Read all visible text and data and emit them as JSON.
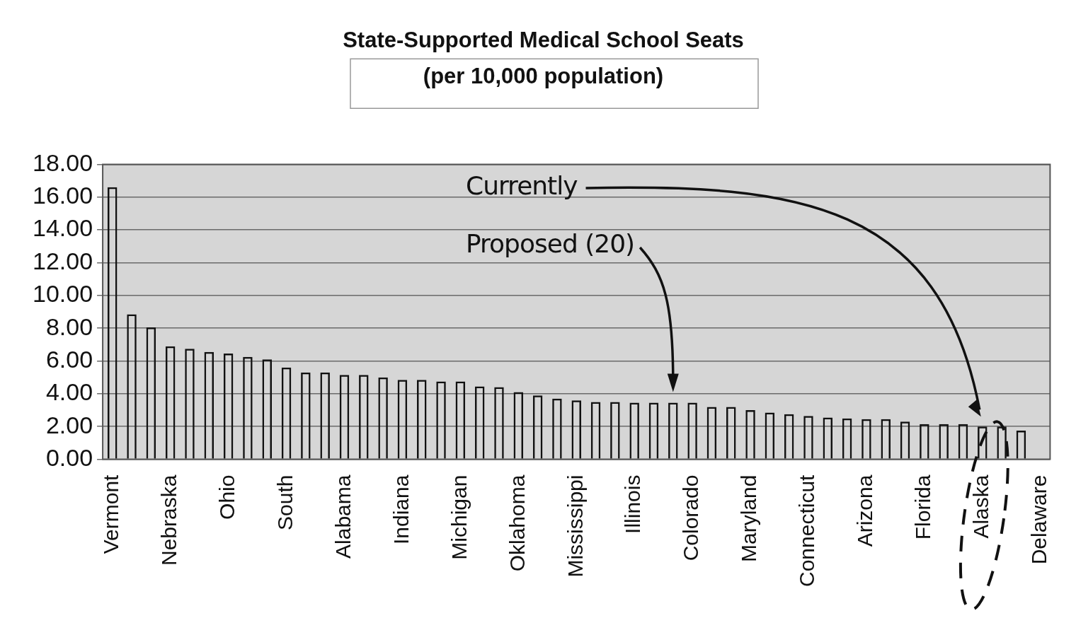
{
  "chart_data": {
    "type": "bar",
    "title": "State-Supported Medical School Seats",
    "subtitle": "(per 10,000 population)",
    "categories": [
      "Vermont",
      null,
      null,
      "Nebraska",
      null,
      null,
      "Ohio",
      null,
      null,
      "South",
      null,
      null,
      "Alabama",
      null,
      null,
      "Indiana",
      null,
      null,
      "Michigan",
      null,
      null,
      "Oklahoma",
      null,
      null,
      "Mississippi",
      null,
      null,
      "Illinois",
      null,
      null,
      "Colorado",
      null,
      null,
      "Maryland",
      null,
      null,
      "Connecticut",
      null,
      null,
      "Arizona",
      null,
      null,
      "Florida",
      null,
      null,
      "Alaska",
      null,
      null,
      "Delaware"
    ],
    "values": [
      16.6,
      8.85,
      8.05,
      6.9,
      6.75,
      6.55,
      6.45,
      6.25,
      6.1,
      5.6,
      5.3,
      5.3,
      5.15,
      5.15,
      5.0,
      4.85,
      4.85,
      4.75,
      4.75,
      4.45,
      4.4,
      4.1,
      3.9,
      3.7,
      3.6,
      3.5,
      3.5,
      3.45,
      3.45,
      3.45,
      3.45,
      3.2,
      3.2,
      3.0,
      2.85,
      2.75,
      2.65,
      2.55,
      2.5,
      2.45,
      2.45,
      2.3,
      2.15,
      2.15,
      2.15,
      2.0,
      2.0,
      1.75,
      0
    ],
    "color": "#111111",
    "ylim": [
      0,
      18
    ],
    "yticks": [
      {
        "value": 0,
        "label": "0.00"
      },
      {
        "value": 2,
        "label": "2.00"
      },
      {
        "value": 4,
        "label": "4.00"
      },
      {
        "value": 6,
        "label": "6.00"
      },
      {
        "value": 8,
        "label": "8.00"
      },
      {
        "value": 10,
        "label": "10.00"
      },
      {
        "value": 12,
        "label": "12.00"
      },
      {
        "value": 14,
        "label": "14.00"
      },
      {
        "value": 16,
        "label": "16.00"
      },
      {
        "value": 18,
        "label": "18.00"
      }
    ],
    "grid": "y",
    "legend": false,
    "annotations": [
      "Currently",
      "Proposed (20)"
    ]
  }
}
